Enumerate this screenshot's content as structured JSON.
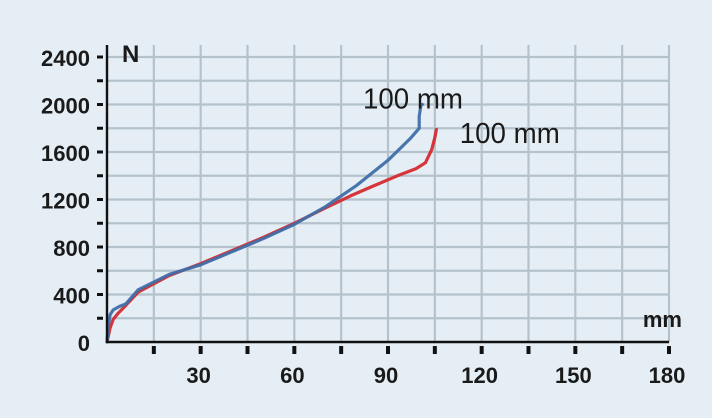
{
  "chart_data": {
    "type": "line",
    "xlabel": "mm",
    "ylabel": "N",
    "xlim": [
      0,
      180
    ],
    "ylim": [
      0,
      2400
    ],
    "xticks": [
      30,
      60,
      90,
      120,
      150,
      180
    ],
    "yticks": [
      0,
      400,
      800,
      1200,
      1600,
      2000,
      2400
    ],
    "grid": true,
    "colors": {
      "background": "#e6eef5",
      "grid": "#b4c2cc",
      "axis": "#111111"
    },
    "series": [
      {
        "name": "100 mm",
        "color": "#d42a30",
        "points": [
          [
            0,
            0
          ],
          [
            0.5,
            60
          ],
          [
            1,
            120
          ],
          [
            2,
            190
          ],
          [
            3.5,
            240
          ],
          [
            5,
            280
          ],
          [
            10,
            420
          ],
          [
            20,
            560
          ],
          [
            30,
            660
          ],
          [
            40,
            770
          ],
          [
            50,
            880
          ],
          [
            60,
            1000
          ],
          [
            70,
            1130
          ],
          [
            78,
            1230
          ],
          [
            85,
            1310
          ],
          [
            93,
            1400
          ],
          [
            99,
            1460
          ],
          [
            102,
            1510
          ],
          [
            104,
            1620
          ],
          [
            105,
            1720
          ],
          [
            105.5,
            1790
          ]
        ]
      },
      {
        "name": "100 mm",
        "color": "#3f6fa8",
        "points": [
          [
            0,
            0
          ],
          [
            0.3,
            100
          ],
          [
            0.6,
            170
          ],
          [
            1,
            230
          ],
          [
            2,
            270
          ],
          [
            4,
            300
          ],
          [
            6,
            320
          ],
          [
            10,
            440
          ],
          [
            20,
            570
          ],
          [
            30,
            650
          ],
          [
            40,
            760
          ],
          [
            50,
            870
          ],
          [
            60,
            990
          ],
          [
            70,
            1140
          ],
          [
            80,
            1320
          ],
          [
            90,
            1530
          ],
          [
            97,
            1710
          ],
          [
            100,
            1800
          ],
          [
            100,
            1900
          ],
          [
            100.5,
            1990
          ],
          [
            101,
            2000
          ]
        ]
      }
    ],
    "annotations": [
      {
        "text": "100 mm",
        "x": 98,
        "y": 2050
      },
      {
        "text": "100 mm",
        "x": 129,
        "y": 1760
      }
    ]
  }
}
